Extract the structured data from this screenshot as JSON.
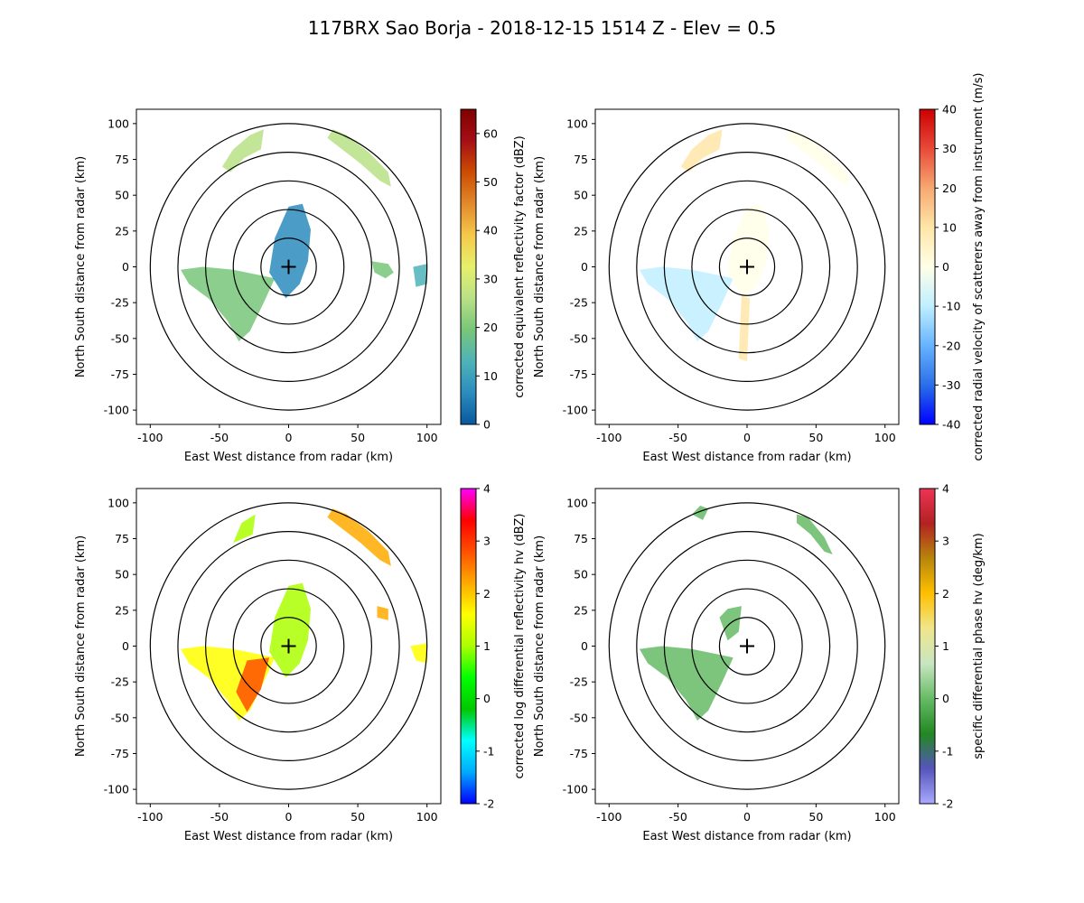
{
  "title": "117BRX Sao Borja - 2018-12-15 1514 Z -  Elev = 0.5",
  "chart_data": [
    {
      "type": "heatmap",
      "field": "reflectivity",
      "xlabel": "East West distance from radar (km)",
      "ylabel": "North South distance from radar (km)",
      "xlim": [
        -110,
        110
      ],
      "ylim": [
        -110,
        110
      ],
      "xticks": [
        -100,
        -50,
        0,
        50,
        100
      ],
      "yticks": [
        -100,
        -75,
        -50,
        -25,
        0,
        25,
        50,
        75,
        100
      ],
      "range_rings_km": [
        20,
        40,
        60,
        80,
        100
      ],
      "colorbar": {
        "label": "corrected equivalent reflectivity factor (dBZ)",
        "range": [
          0,
          65
        ],
        "ticks": [
          0,
          10,
          20,
          30,
          40,
          50,
          60
        ],
        "colors": [
          "#08589e",
          "#2b8cbe",
          "#4eb3b8",
          "#78c679",
          "#b8e186",
          "#e6f06b",
          "#f5c94a",
          "#e3892b",
          "#cc4c02",
          "#a50f15",
          "#7f0000"
        ]
      },
      "echo_regions": [
        {
          "name": "west-wedge",
          "polygon": [
            [
              -78,
              -2
            ],
            [
              -62,
              0
            ],
            [
              -40,
              -2
            ],
            [
              -20,
              -6
            ],
            [
              -10,
              -8
            ],
            [
              -18,
              -25
            ],
            [
              -28,
              -45
            ],
            [
              -36,
              -52
            ],
            [
              -44,
              -38
            ],
            [
              -58,
              -22
            ],
            [
              -72,
              -12
            ]
          ],
          "value": 22
        },
        {
          "name": "north-cell-nw",
          "polygon": [
            [
              -48,
              70
            ],
            [
              -40,
              82
            ],
            [
              -28,
              92
            ],
            [
              -18,
              96
            ],
            [
              -20,
              82
            ],
            [
              -32,
              76
            ],
            [
              -42,
              66
            ]
          ],
          "value": 24
        },
        {
          "name": "north-cell-ne",
          "polygon": [
            [
              32,
              96
            ],
            [
              42,
              92
            ],
            [
              58,
              80
            ],
            [
              72,
              66
            ],
            [
              74,
              56
            ],
            [
              66,
              60
            ],
            [
              52,
              72
            ],
            [
              36,
              84
            ],
            [
              28,
              90
            ]
          ],
          "value": 28
        },
        {
          "name": "center-scatter",
          "polygon": [
            [
              -14,
              -4
            ],
            [
              -10,
              20
            ],
            [
              0,
              42
            ],
            [
              10,
              44
            ],
            [
              16,
              26
            ],
            [
              14,
              4
            ],
            [
              8,
              -12
            ],
            [
              -2,
              -22
            ]
          ],
          "value": 8
        },
        {
          "name": "east-patch",
          "polygon": [
            [
              60,
              4
            ],
            [
              72,
              2
            ],
            [
              76,
              -4
            ],
            [
              70,
              -8
            ],
            [
              62,
              -4
            ]
          ],
          "value": 18
        },
        {
          "name": "far-east-patch",
          "polygon": [
            [
              90,
              0
            ],
            [
              100,
              2
            ],
            [
              100,
              -12
            ],
            [
              92,
              -14
            ]
          ],
          "value": 16
        }
      ]
    },
    {
      "type": "heatmap",
      "field": "velocity",
      "xlabel": "East West distance from radar (km)",
      "ylabel": "North South distance from radar (km)",
      "xlim": [
        -110,
        110
      ],
      "ylim": [
        -110,
        110
      ],
      "xticks": [
        -100,
        -50,
        0,
        50,
        100
      ],
      "yticks": [
        -100,
        -75,
        -50,
        -25,
        0,
        25,
        50,
        75,
        100
      ],
      "range_rings_km": [
        20,
        40,
        60,
        80,
        100
      ],
      "colorbar": {
        "label": "corrected radial velocity of scatterers away from instrument (m/s)",
        "range": [
          -40,
          40
        ],
        "ticks": [
          -40,
          -30,
          -20,
          -10,
          0,
          10,
          20,
          30,
          40
        ],
        "colors": [
          "#0000ff",
          "#2a6fe8",
          "#66b3ff",
          "#bfefff",
          "#ffffe8",
          "#ffe6a8",
          "#f7a871",
          "#e84a3a",
          "#cc0000"
        ]
      },
      "echo_regions": [
        {
          "name": "west-wedge",
          "polygon": [
            [
              -78,
              -2
            ],
            [
              -62,
              0
            ],
            [
              -40,
              -2
            ],
            [
              -20,
              -6
            ],
            [
              -10,
              -8
            ],
            [
              -18,
              -25
            ],
            [
              -28,
              -45
            ],
            [
              -36,
              -52
            ],
            [
              -44,
              -38
            ],
            [
              -58,
              -22
            ],
            [
              -72,
              -12
            ]
          ],
          "value": -8
        },
        {
          "name": "north-cell-nw",
          "polygon": [
            [
              -48,
              70
            ],
            [
              -40,
              82
            ],
            [
              -28,
              92
            ],
            [
              -18,
              96
            ],
            [
              -20,
              82
            ],
            [
              -32,
              76
            ],
            [
              -42,
              66
            ]
          ],
          "value": 14
        },
        {
          "name": "north-cell-ne",
          "polygon": [
            [
              32,
              96
            ],
            [
              42,
              92
            ],
            [
              58,
              80
            ],
            [
              72,
              66
            ],
            [
              74,
              56
            ],
            [
              66,
              60
            ],
            [
              52,
              72
            ],
            [
              36,
              84
            ],
            [
              28,
              90
            ]
          ],
          "value": 4
        },
        {
          "name": "center-scatter",
          "polygon": [
            [
              -14,
              -4
            ],
            [
              -10,
              20
            ],
            [
              0,
              42
            ],
            [
              10,
              44
            ],
            [
              16,
              26
            ],
            [
              14,
              4
            ],
            [
              8,
              -12
            ],
            [
              -2,
              -22
            ]
          ],
          "value": 3
        },
        {
          "name": "south-streak",
          "polygon": [
            [
              -4,
              -20
            ],
            [
              2,
              -22
            ],
            [
              0,
              -66
            ],
            [
              -6,
              -64
            ]
          ],
          "value": 8
        }
      ]
    },
    {
      "type": "heatmap",
      "field": "differential_reflectivity",
      "xlabel": "East West distance from radar (km)",
      "ylabel": "North South distance from radar (km)",
      "xlim": [
        -110,
        110
      ],
      "ylim": [
        -110,
        110
      ],
      "xticks": [
        -100,
        -50,
        0,
        50,
        100
      ],
      "yticks": [
        -100,
        -75,
        -50,
        -25,
        0,
        25,
        50,
        75,
        100
      ],
      "range_rings_km": [
        20,
        40,
        60,
        80,
        100
      ],
      "colorbar": {
        "label": "corrected log differential reflectivity hv (dBZ)",
        "range": [
          -2,
          4
        ],
        "ticks": [
          -2,
          -1,
          0,
          1,
          2,
          3,
          4
        ],
        "colors": [
          "#0000ff",
          "#00aaff",
          "#00ffff",
          "#00c800",
          "#00ff00",
          "#aaff00",
          "#ffff00",
          "#ffaa00",
          "#ff5000",
          "#ff0000",
          "#ff00ff"
        ]
      },
      "echo_regions": [
        {
          "name": "west-wedge",
          "polygon": [
            [
              -78,
              -2
            ],
            [
              -62,
              0
            ],
            [
              -40,
              -2
            ],
            [
              -20,
              -6
            ],
            [
              -10,
              -8
            ],
            [
              -18,
              -25
            ],
            [
              -28,
              -45
            ],
            [
              -36,
              -52
            ],
            [
              -44,
              -38
            ],
            [
              -58,
              -22
            ],
            [
              -72,
              -12
            ]
          ],
          "value": 1.4
        },
        {
          "name": "wedge-core",
          "polygon": [
            [
              -30,
              -10
            ],
            [
              -14,
              -8
            ],
            [
              -20,
              -30
            ],
            [
              -30,
              -46
            ],
            [
              -38,
              -32
            ]
          ],
          "value": 2.8
        },
        {
          "name": "north-cell-nw",
          "polygon": [
            [
              -40,
              72
            ],
            [
              -34,
              86
            ],
            [
              -24,
              92
            ],
            [
              -26,
              78
            ]
          ],
          "value": 1.2
        },
        {
          "name": "north-cell-ne",
          "polygon": [
            [
              32,
              96
            ],
            [
              42,
              92
            ],
            [
              58,
              80
            ],
            [
              72,
              66
            ],
            [
              74,
              56
            ],
            [
              66,
              60
            ],
            [
              52,
              72
            ],
            [
              36,
              84
            ],
            [
              28,
              90
            ]
          ],
          "value": 2.0
        },
        {
          "name": "center-scatter",
          "polygon": [
            [
              -14,
              -4
            ],
            [
              -10,
              20
            ],
            [
              0,
              42
            ],
            [
              10,
              44
            ],
            [
              16,
              26
            ],
            [
              14,
              4
            ],
            [
              8,
              -12
            ],
            [
              -2,
              -22
            ]
          ],
          "value": 0.8
        },
        {
          "name": "east-patch",
          "polygon": [
            [
              64,
              28
            ],
            [
              72,
              26
            ],
            [
              72,
              18
            ],
            [
              64,
              20
            ]
          ],
          "value": 2.2
        },
        {
          "name": "far-east-patch",
          "polygon": [
            [
              88,
              0
            ],
            [
              100,
              2
            ],
            [
              100,
              -12
            ],
            [
              92,
              -10
            ]
          ],
          "value": 1.6
        }
      ]
    },
    {
      "type": "heatmap",
      "field": "specific_differential_phase",
      "xlabel": "East West distance from radar (km)",
      "ylabel": "North South distance from radar (km)",
      "xlim": [
        -110,
        110
      ],
      "ylim": [
        -110,
        110
      ],
      "xticks": [
        -100,
        -50,
        0,
        50,
        100
      ],
      "yticks": [
        -100,
        -75,
        -50,
        -25,
        0,
        25,
        50,
        75,
        100
      ],
      "range_rings_km": [
        20,
        40,
        60,
        80,
        100
      ],
      "colorbar": {
        "label": "specific differential phase hv (deg/km)",
        "range": [
          -2,
          4
        ],
        "ticks": [
          -2,
          -1,
          0,
          1,
          2,
          3,
          4
        ],
        "colors": [
          "#aaaaff",
          "#5555bb",
          "#228822",
          "#66bb66",
          "#c8e6c0",
          "#f0e68c",
          "#ffc000",
          "#b8860b",
          "#b22222",
          "#ee3355"
        ]
      },
      "echo_regions": [
        {
          "name": "west-wedge",
          "polygon": [
            [
              -78,
              -2
            ],
            [
              -62,
              0
            ],
            [
              -40,
              -2
            ],
            [
              -20,
              -6
            ],
            [
              -10,
              -8
            ],
            [
              -18,
              -25
            ],
            [
              -28,
              -45
            ],
            [
              -36,
              -52
            ],
            [
              -44,
              -38
            ],
            [
              -58,
              -22
            ],
            [
              -72,
              -12
            ]
          ],
          "value": 0.1
        },
        {
          "name": "north-cell-nw",
          "polygon": [
            [
              -40,
              92
            ],
            [
              -34,
              98
            ],
            [
              -28,
              96
            ],
            [
              -32,
              88
            ]
          ],
          "value": 0.2
        },
        {
          "name": "north-cell-ne",
          "polygon": [
            [
              36,
              92
            ],
            [
              44,
              90
            ],
            [
              56,
              76
            ],
            [
              62,
              64
            ],
            [
              56,
              66
            ],
            [
              46,
              78
            ],
            [
              36,
              86
            ]
          ],
          "value": 0.2
        },
        {
          "name": "center-scatter",
          "polygon": [
            [
              -20,
              20
            ],
            [
              -14,
              26
            ],
            [
              -4,
              28
            ],
            [
              -6,
              10
            ],
            [
              -14,
              4
            ]
          ],
          "value": 0.3
        }
      ]
    }
  ]
}
